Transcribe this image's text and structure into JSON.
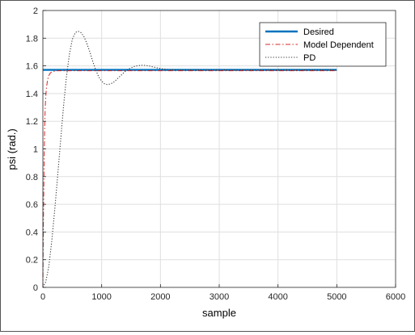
{
  "chart_data": {
    "type": "line",
    "xlabel": "sample",
    "ylabel": "psi (rad.)",
    "xlim": [
      0,
      6000
    ],
    "ylim": [
      0,
      2
    ],
    "xticks": [
      "0",
      "1000",
      "2000",
      "3000",
      "4000",
      "5000",
      "6000"
    ],
    "yticks": [
      "0",
      "0.2",
      "0.4",
      "0.6",
      "0.8",
      "1",
      "1.2",
      "1.4",
      "1.6",
      "1.8",
      "2"
    ],
    "grid": true,
    "legend_position": "top-right",
    "series": [
      {
        "name": "Desired",
        "style": "solid",
        "color": "#0072BD",
        "x": [
          0,
          5000
        ],
        "y": [
          1.5708,
          1.5708
        ]
      },
      {
        "name": "Model Dependent",
        "style": "dashdot",
        "color": "#D62728",
        "x": [
          0,
          10,
          20,
          30,
          40,
          50,
          60,
          80,
          100,
          130,
          170,
          250,
          500,
          1000,
          2000,
          3000,
          4000,
          5000
        ],
        "y": [
          0,
          0.5,
          0.9,
          1.15,
          1.3,
          1.38,
          1.44,
          1.5,
          1.53,
          1.55,
          1.56,
          1.565,
          1.565,
          1.565,
          1.565,
          1.565,
          1.565,
          1.565
        ]
      },
      {
        "name": "PD",
        "style": "dotted",
        "color": "#333333",
        "x": [
          0,
          50,
          100,
          150,
          200,
          250,
          300,
          350,
          400,
          450,
          500,
          550,
          600,
          650,
          700,
          750,
          800,
          850,
          900,
          950,
          1000,
          1050,
          1100,
          1150,
          1200,
          1250,
          1300,
          1350,
          1400,
          1450,
          1500,
          1550,
          1600,
          1650,
          1700,
          1750,
          1800,
          1850,
          1900,
          1950,
          2000,
          2100,
          2200,
          2400,
          2600,
          3000,
          3500,
          4000,
          4500,
          5000
        ],
        "y": [
          0,
          0.04,
          0.15,
          0.33,
          0.55,
          0.8,
          1.05,
          1.3,
          1.52,
          1.68,
          1.79,
          1.84,
          1.85,
          1.84,
          1.81,
          1.76,
          1.7,
          1.63,
          1.57,
          1.52,
          1.49,
          1.47,
          1.465,
          1.47,
          1.48,
          1.5,
          1.52,
          1.54,
          1.56,
          1.575,
          1.585,
          1.595,
          1.6,
          1.603,
          1.605,
          1.603,
          1.6,
          1.595,
          1.59,
          1.585,
          1.58,
          1.575,
          1.572,
          1.57,
          1.57,
          1.57,
          1.57,
          1.57,
          1.57,
          1.57
        ]
      }
    ]
  }
}
